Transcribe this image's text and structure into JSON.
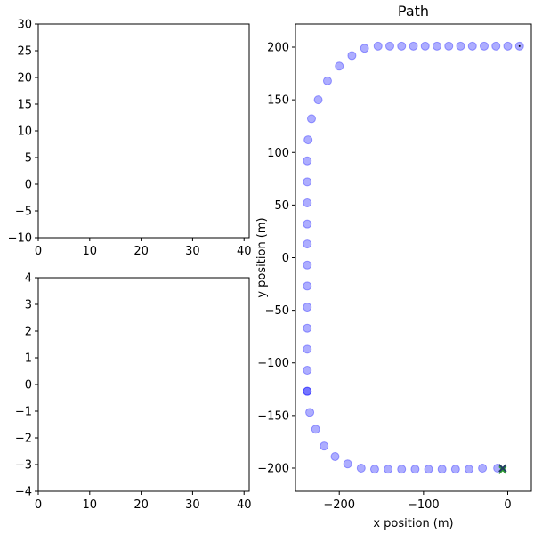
{
  "chart_data": [
    {
      "type": "line",
      "title": "",
      "xlabel": "",
      "ylabel": "",
      "xlim": [
        0,
        41
      ],
      "ylim": [
        -10,
        30
      ],
      "xticks": [
        0,
        10,
        20,
        30,
        40
      ],
      "yticks": [
        -10,
        -5,
        0,
        5,
        10,
        15,
        20,
        25,
        30
      ],
      "series": []
    },
    {
      "type": "line",
      "title": "",
      "xlabel": "",
      "ylabel": "",
      "xlim": [
        0,
        41
      ],
      "ylim": [
        -4,
        4
      ],
      "xticks": [
        0,
        10,
        20,
        30,
        40
      ],
      "yticks": [
        -4,
        -3,
        -2,
        -1,
        0,
        1,
        2,
        3,
        4
      ],
      "series": []
    },
    {
      "type": "scatter",
      "title": "Path",
      "xlabel": "x position (m)",
      "ylabel": "y position (m)",
      "xlim": [
        -252,
        28
      ],
      "ylim": [
        -222,
        222
      ],
      "xticks": [
        -200,
        -100,
        0
      ],
      "yticks": [
        -200,
        -150,
        -100,
        -50,
        0,
        50,
        100,
        150,
        200
      ],
      "colors": {
        "points": "#0000ff",
        "marker_dark": "#1f3f5f",
        "marker_green": "#2ca02c"
      },
      "points_x": [
        14,
        0,
        -14,
        -28,
        -42,
        -56,
        -70,
        -84,
        -98,
        -112,
        -126,
        -140,
        -154,
        -170,
        -185,
        -200,
        -214,
        -225,
        -233,
        -237,
        -238,
        -238,
        -238,
        -238,
        -238,
        -238,
        -238,
        -238,
        -238,
        -238,
        -238,
        -238,
        -238,
        -235,
        -228,
        -218,
        -205,
        -190,
        -174,
        -158,
        -142,
        -126,
        -110,
        -94,
        -78,
        -62,
        -46,
        -30,
        -12
      ],
      "points_y": [
        201,
        201,
        201,
        201,
        201,
        201,
        201,
        201,
        201,
        201,
        201,
        201,
        201,
        199,
        192,
        182,
        168,
        150,
        132,
        112,
        92,
        72,
        52,
        32,
        13,
        -7,
        -27,
        -47,
        -67,
        -87,
        -107,
        -127,
        -127,
        -147,
        -163,
        -179,
        -189,
        -196,
        -200,
        -201,
        -201,
        -201,
        -201,
        -201,
        -201,
        -201,
        -201,
        -200,
        -200
      ],
      "start_marker": {
        "x": 14,
        "y": 201
      },
      "end_markers": [
        {
          "x": -6,
          "y": -200
        },
        {
          "x": -6,
          "y": -202
        }
      ]
    }
  ]
}
